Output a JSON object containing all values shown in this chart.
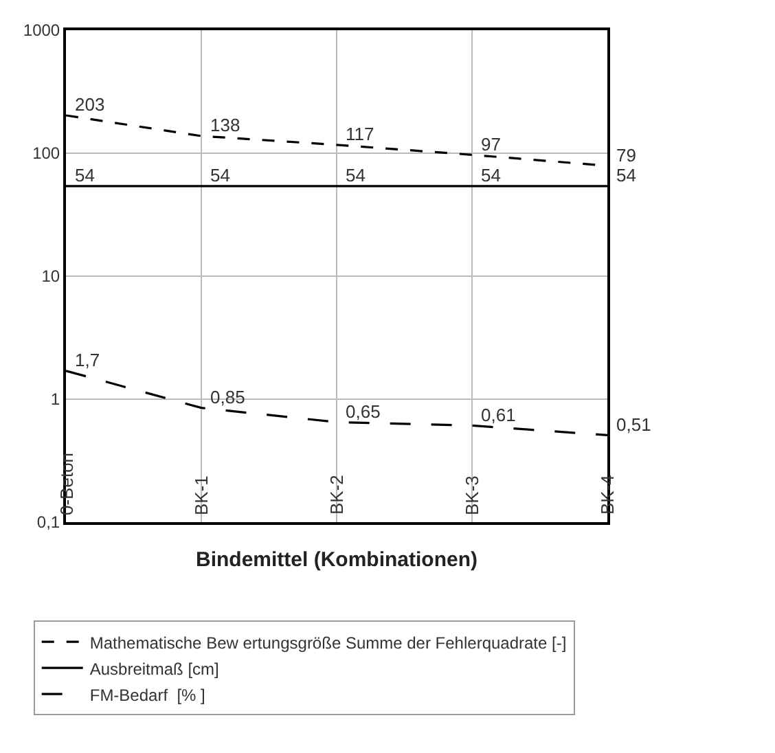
{
  "chart_data": {
    "type": "line",
    "xlabel": "Bindemittel (Kombinationen)",
    "categories": [
      "0-Beton",
      "BK-1",
      "BK-2",
      "BK-3",
      "BK-4"
    ],
    "series": [
      {
        "name": "Mathematische Bew ertungsgröße Summe der Fehlerquadrate [-]",
        "color": "#000000",
        "line_style": "dotted",
        "values": [
          203,
          138,
          117,
          97,
          79
        ],
        "value_labels": [
          "203",
          "138",
          "117",
          "97",
          "79"
        ]
      },
      {
        "name": "Ausbreitmaß [cm]",
        "color": "#000000",
        "line_style": "solid",
        "values": [
          54,
          54,
          54,
          54,
          54
        ],
        "value_labels": [
          "54",
          "54",
          "54",
          "54",
          "54"
        ]
      },
      {
        "name": "FM-Bedarf  [% ]",
        "color": "#000000",
        "line_style": "dashed",
        "values": [
          1.7,
          0.85,
          0.65,
          0.61,
          0.51
        ],
        "value_labels": [
          "1,7",
          "0,85",
          "0,65",
          "0,61",
          "0,51"
        ]
      }
    ],
    "log": "y",
    "ylim": [
      0.1,
      1000
    ],
    "yticks": [
      {
        "value": 0.1,
        "label": "0,1"
      },
      1,
      10,
      100,
      1000
    ],
    "grid": true,
    "legend": "bottom",
    "marker": "none"
  }
}
